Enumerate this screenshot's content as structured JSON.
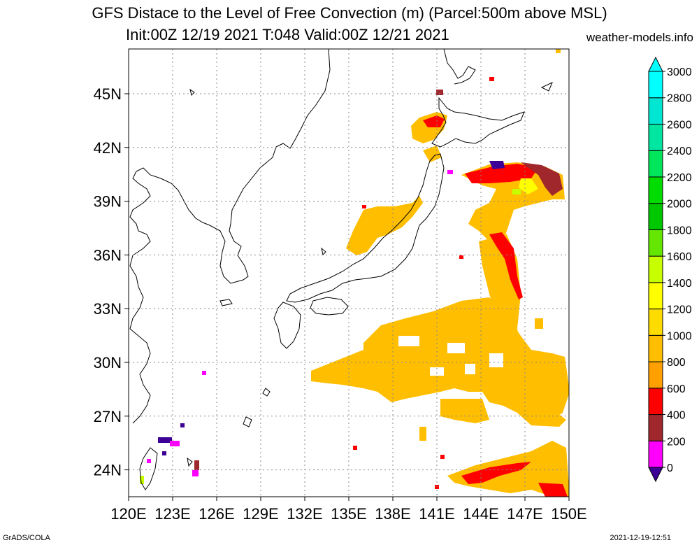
{
  "title": {
    "line1": "GFS Distace to the Level of Free Convection (m) (Parcel:500m above MSL)",
    "line2": "Init:00Z 12/19 2021 T:048 Valid:00Z 12/21 2021",
    "site": "weather-models.info"
  },
  "footer": {
    "left": "GrADS/COLA",
    "right": "2021-12-19-12:51"
  },
  "map": {
    "lon_range": [
      120,
      150
    ],
    "lat_range": [
      22.5,
      47.5
    ],
    "lon_ticks": [
      "120E",
      "123E",
      "126E",
      "129E",
      "132E",
      "135E",
      "138E",
      "141E",
      "144E",
      "147E",
      "150E"
    ],
    "lat_ticks": [
      "24N",
      "27N",
      "30N",
      "33N",
      "36N",
      "39N",
      "42N",
      "45N"
    ],
    "gridlines": true
  },
  "colorbar": {
    "labels": [
      "0",
      "200",
      "400",
      "600",
      "800",
      "1000",
      "1200",
      "1400",
      "1600",
      "1800",
      "2000",
      "2200",
      "2400",
      "2600",
      "2800",
      "3000"
    ],
    "colors": [
      "#3c0096",
      "#ff00ff",
      "#a0282d",
      "#ff0000",
      "#ffa000",
      "#ffbe00",
      "#ffdc00",
      "#ffff00",
      "#c8ff00",
      "#64e600",
      "#00c800",
      "#00dc00",
      "#00e65a",
      "#00e6a0",
      "#00e6d2",
      "#00ffff"
    ]
  }
}
